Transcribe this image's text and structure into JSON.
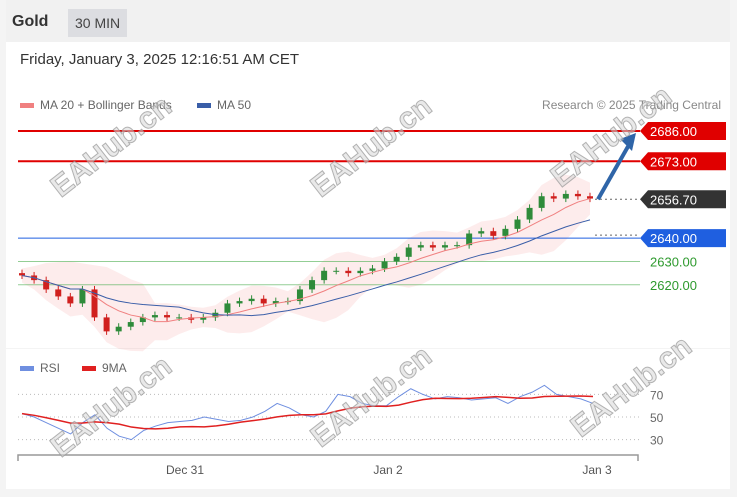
{
  "header": {
    "title": "Gold",
    "timeframe": "30 MIN"
  },
  "timestamp": "Friday, January 3, 2025 12:16:51 AM CET",
  "legend": {
    "ma20": "MA 20 + Bollinger Bands",
    "ma50": "MA 50",
    "rsi": "RSI",
    "rsi_ma": "9MA"
  },
  "credit": "Research © 2025 Trading Central",
  "watermark": "EAHub.cn",
  "colors": {
    "up": "#2e8b3a",
    "down": "#d0201e",
    "ma20": "#f08080",
    "ma50": "#3a5ea8",
    "resistance": "#e00000",
    "support_blue": "#1f5fe0",
    "support_green": "#4caf50",
    "rsi": "#6f8fe0",
    "rsi_ma": "#e02020",
    "arrow": "#2f65a8"
  },
  "chart_data": {
    "type": "candlestick",
    "closes": [
      2624,
      2622,
      2618,
      2615,
      2612,
      2618,
      2606,
      2600,
      2602,
      2604,
      2606,
      2607,
      2606,
      2606,
      2605,
      2606,
      2608,
      2612,
      2613,
      2614,
      2612,
      2613,
      2613,
      2618,
      2622,
      2626,
      2626,
      2625,
      2626,
      2627,
      2630,
      2632,
      2636,
      2637,
      2636,
      2637,
      2637,
      2642,
      2643,
      2641,
      2644,
      2648,
      2653,
      2658,
      2657,
      2659,
      2658,
      2657
    ],
    "levels": [
      {
        "value": 2686,
        "label": "2686.00",
        "kind": "resistance"
      },
      {
        "value": 2673,
        "label": "2673.00",
        "kind": "resistance"
      },
      {
        "value": 2656.7,
        "label": "2656.70",
        "kind": "last"
      },
      {
        "value": 2640,
        "label": "2640.00",
        "kind": "pivot"
      },
      {
        "value": 2630,
        "label": "2630.00",
        "kind": "support"
      },
      {
        "value": 2620,
        "label": "2620.00",
        "kind": "support"
      }
    ],
    "arrow": {
      "from": 2656.7,
      "to": 2686
    },
    "x_ticks": [
      "Dec 31",
      "Jan 2",
      "Jan 3"
    ],
    "rsi": {
      "values": [
        53,
        50,
        45,
        40,
        35,
        45,
        52,
        40,
        33,
        30,
        38,
        42,
        45,
        46,
        47,
        50,
        48,
        46,
        47,
        50,
        55,
        62,
        58,
        52,
        50,
        55,
        70,
        68,
        62,
        60,
        60,
        68,
        75,
        70,
        66,
        68,
        67,
        65,
        66,
        67,
        62,
        68,
        72,
        78,
        70,
        68,
        66,
        62
      ],
      "ticks": [
        "70",
        "50",
        "30"
      ],
      "levels": [
        70,
        50,
        30
      ]
    }
  }
}
